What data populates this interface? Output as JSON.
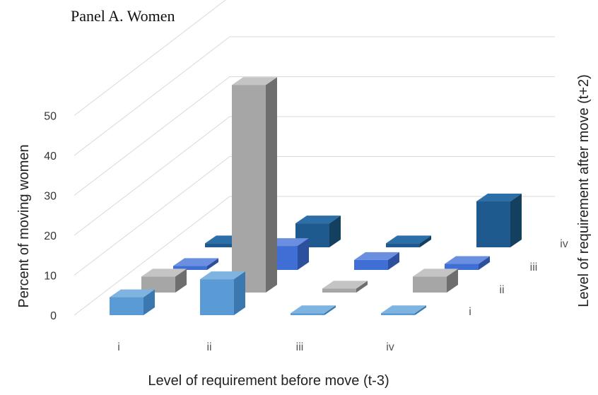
{
  "chart_data": {
    "type": "bar",
    "subtype": "3d-bar",
    "title": "Panel A. Women",
    "xlabel": "Level of requirement before move (t-3)",
    "ylabel": "Percent of moving women",
    "zlabel": "Level of requirement after move (t+2)",
    "categories": [
      "i",
      "ii",
      "iii",
      "iv"
    ],
    "depth_categories": [
      "i",
      "ii",
      "iii",
      "iv"
    ],
    "ylim": [
      0,
      50
    ],
    "yticks": [
      0,
      10,
      20,
      30,
      40,
      50
    ],
    "grid": true,
    "series": [
      {
        "name": "i",
        "values": [
          4.5,
          9,
          0.5,
          0.5
        ]
      },
      {
        "name": "ii",
        "values": [
          4,
          52,
          1,
          4
        ]
      },
      {
        "name": "iii",
        "values": [
          1,
          6,
          2.5,
          1.5
        ]
      },
      {
        "name": "iv",
        "values": [
          1,
          6,
          1,
          11.5
        ]
      }
    ],
    "colors": {
      "i": {
        "front": "#5b9bd5",
        "top": "#7fb3e0",
        "side": "#3c78b0"
      },
      "ii": {
        "front": "#a6a6a6",
        "top": "#c4c4c4",
        "side": "#6e6e6e"
      },
      "iii": {
        "front": "#3f6fd4",
        "top": "#6a8fe0",
        "side": "#2c4f9e"
      },
      "iv": {
        "front": "#1f5a8e",
        "top": "#2b6ea8",
        "side": "#14405f"
      }
    }
  }
}
